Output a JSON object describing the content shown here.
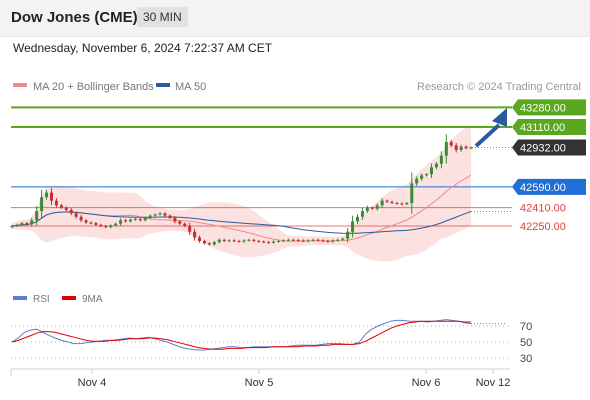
{
  "header": {
    "title": "Dow Jones (CME)",
    "timeframe": "30 MIN"
  },
  "datetime": "Wednesday, November 6, 2024 7:22:37 AM CET",
  "legend": {
    "ma_bb": {
      "label": "MA 20 + Bollinger Bands",
      "color": "#f08a8a"
    },
    "ma50": {
      "label": "MA 50",
      "color": "#2c5aa0"
    }
  },
  "watermark": "Research © 2024 Trading Central",
  "rsi_legend": {
    "rsi": {
      "label": "RSI",
      "color": "#5b7fd6"
    },
    "ma9": {
      "label": "9MA",
      "color": "#e00000"
    }
  },
  "chart_data": [
    {
      "type": "candlestick",
      "y_range": [
        42080,
        43330
      ],
      "x_labels": [
        "Nov 4",
        "Nov 5",
        "Nov 6",
        "Nov 12"
      ],
      "levels": [
        {
          "value": "43280.00",
          "type": "resistance",
          "color": "#5aa81d"
        },
        {
          "value": "43110.00",
          "type": "resistance",
          "color": "#5aa81d"
        },
        {
          "value": "42932.00",
          "type": "last",
          "color": "#333333"
        },
        {
          "value": "42590.00",
          "type": "pivot",
          "color": "#1f6fd6"
        },
        {
          "value": "42410.00",
          "type": "support",
          "color": "#e04040"
        },
        {
          "value": "42250.00",
          "type": "support",
          "color": "#e04040"
        }
      ],
      "series": [
        {
          "name": "MA 20 + Bollinger Bands"
        },
        {
          "name": "MA 50"
        }
      ],
      "close": [
        42250,
        42260,
        42275,
        42265,
        42300,
        42380,
        42500,
        42540,
        42470,
        42430,
        42410,
        42390,
        42360,
        42330,
        42300,
        42280,
        42275,
        42260,
        42250,
        42240,
        42255,
        42270,
        42300,
        42290,
        42305,
        42310,
        42300,
        42320,
        42340,
        42350,
        42360,
        42340,
        42320,
        42290,
        42270,
        42250,
        42200,
        42150,
        42120,
        42100,
        42090,
        42110,
        42130,
        42120,
        42125,
        42120,
        42115,
        42125,
        42130,
        42120,
        42115,
        42110,
        42105,
        42115,
        42120,
        42125,
        42130,
        42128,
        42125,
        42120,
        42125,
        42130,
        42125,
        42120,
        42115,
        42125,
        42130,
        42140,
        42200,
        42290,
        42330,
        42380,
        42410,
        42400,
        42430,
        42470,
        42460,
        42450,
        42445,
        42440,
        42450,
        42620,
        42660,
        42690,
        42700,
        42760,
        42790,
        42860,
        42980,
        42950,
        42910,
        42940,
        42925,
        42932
      ]
    },
    {
      "type": "line",
      "name": "RSI",
      "y_ticks": [
        70,
        50,
        30
      ],
      "series": [
        {
          "name": "RSI",
          "values": [
            50,
            55,
            62,
            65,
            66,
            62,
            58,
            55,
            52,
            50,
            48,
            48,
            49,
            50,
            51,
            52,
            52,
            53,
            54,
            55,
            54,
            55,
            56,
            54,
            52,
            50,
            47,
            44,
            42,
            41,
            40,
            40,
            41,
            42,
            43,
            44,
            44,
            43,
            43,
            44,
            44,
            44,
            44,
            44,
            44,
            45,
            46,
            46,
            46,
            46,
            47,
            48,
            48,
            48,
            47,
            47,
            50,
            60,
            66,
            70,
            73,
            76,
            77,
            77,
            76,
            76,
            76,
            75,
            76,
            77,
            78,
            77,
            76,
            74,
            73
          ]
        },
        {
          "name": "9MA",
          "values": [
            50,
            52,
            55,
            58,
            61,
            63,
            63,
            62,
            60,
            58,
            56,
            54,
            52,
            51,
            51,
            51,
            52,
            52,
            53,
            54,
            54,
            54,
            55,
            55,
            54,
            53,
            51,
            49,
            47,
            45,
            43,
            42,
            41,
            41,
            41,
            42,
            42,
            42,
            43,
            43,
            43,
            43,
            44,
            44,
            44,
            44,
            44,
            45,
            45,
            45,
            46,
            46,
            47,
            47,
            47,
            47,
            48,
            51,
            55,
            59,
            63,
            67,
            70,
            72,
            74,
            75,
            76,
            76,
            76,
            76,
            76,
            76,
            76,
            75,
            75
          ]
        }
      ]
    }
  ]
}
